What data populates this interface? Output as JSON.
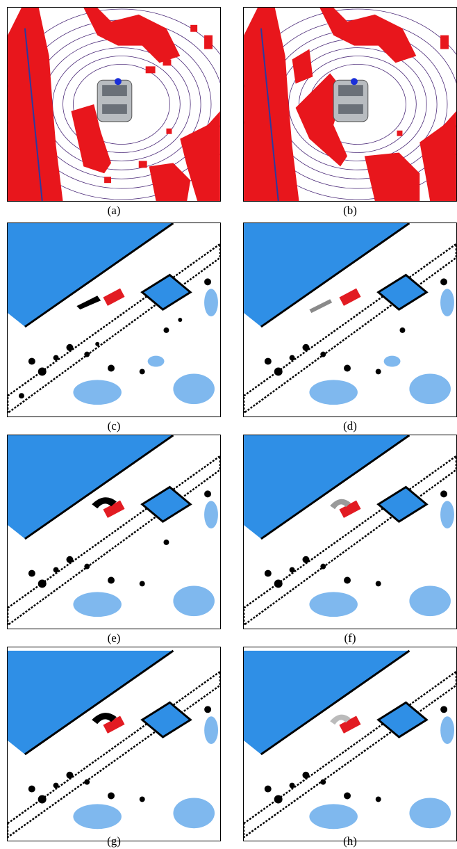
{
  "figure": {
    "panels": [
      {
        "id": "a",
        "caption": "(a)",
        "type": "lidar"
      },
      {
        "id": "b",
        "caption": "(b)",
        "type": "lidar"
      },
      {
        "id": "c",
        "caption": "(c)",
        "type": "map"
      },
      {
        "id": "d",
        "caption": "(d)",
        "type": "map"
      },
      {
        "id": "e",
        "caption": "(e)",
        "type": "map"
      },
      {
        "id": "f",
        "caption": "(f)",
        "type": "map"
      },
      {
        "id": "g",
        "caption": "(g)",
        "type": "map"
      },
      {
        "id": "h",
        "caption": "(h)",
        "type": "map"
      }
    ]
  },
  "colors": {
    "occupied_red": "#e8161c",
    "scan_ring": "#4b2a78",
    "map_blue": "#2f8fe6",
    "light_blue": "#7fb8ee",
    "vehicle_red": "#e21b22",
    "obstacle_black": "#000000"
  }
}
